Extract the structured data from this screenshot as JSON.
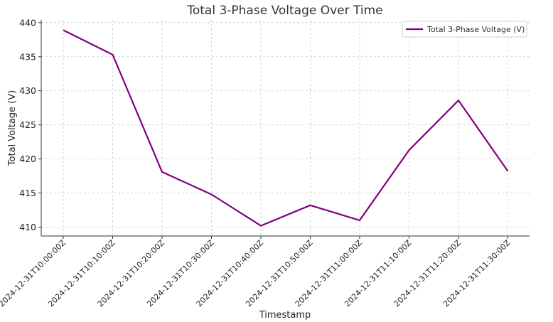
{
  "chart_data": {
    "type": "line",
    "title": "Total 3-Phase Voltage Over Time",
    "xlabel": "Timestamp",
    "ylabel": "Total Voltage (V)",
    "ylim": [
      408.7,
      440.4
    ],
    "yticks": [
      410,
      415,
      420,
      425,
      430,
      435,
      440
    ],
    "grid": true,
    "legend_position": "top-right",
    "x": [
      "2024-12-31T10:00:00Z",
      "2024-12-31T10:10:00Z",
      "2024-12-31T10:20:00Z",
      "2024-12-31T10:30:00Z",
      "2024-12-31T10:40:00Z",
      "2024-12-31T10:50:00Z",
      "2024-12-31T11:00:00Z",
      "2024-12-31T11:10:00Z",
      "2024-12-31T11:20:00Z",
      "2024-12-31T11:30:00Z"
    ],
    "series": [
      {
        "name": "Total 3-Phase Voltage (V)",
        "color": "#800080",
        "values": [
          438.9,
          435.3,
          418.1,
          414.8,
          410.2,
          413.2,
          411.0,
          421.3,
          428.6,
          418.2
        ]
      }
    ]
  }
}
